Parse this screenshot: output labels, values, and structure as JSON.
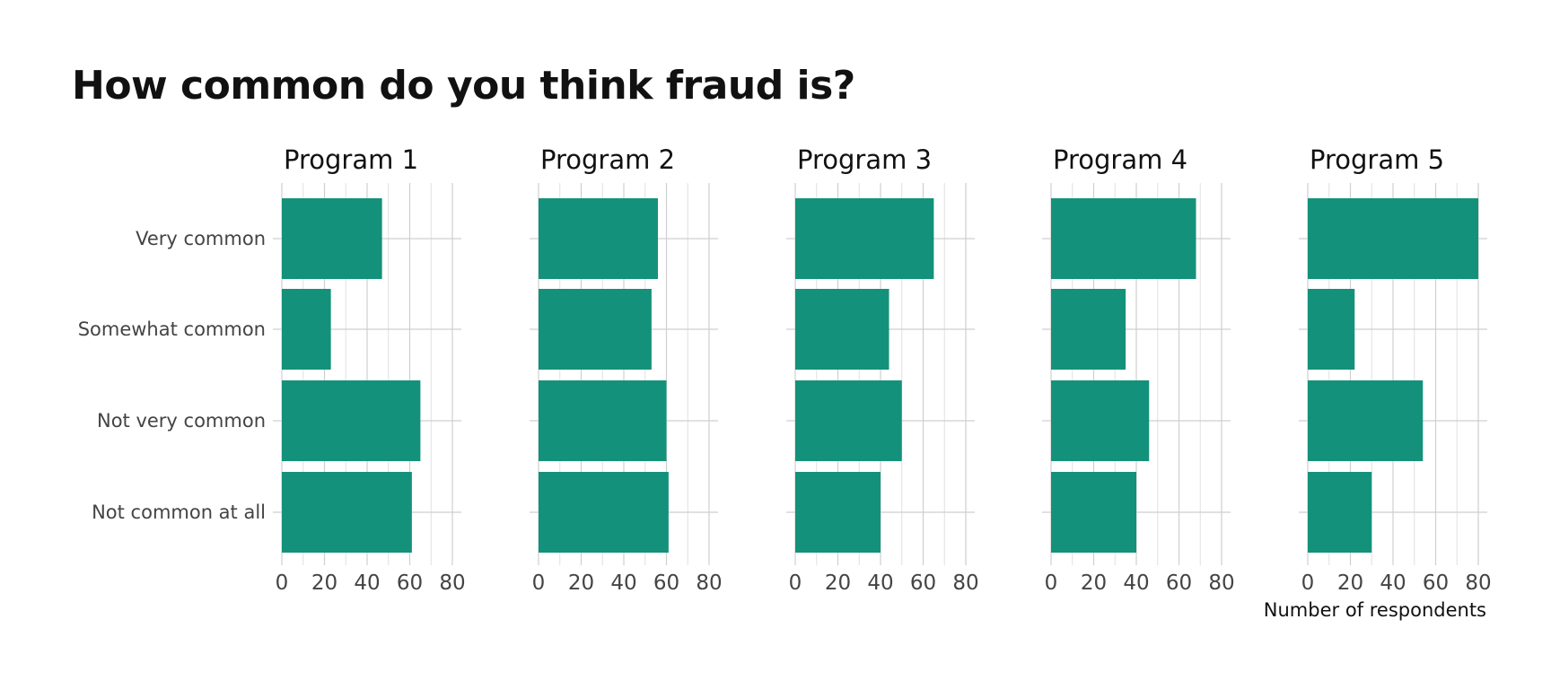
{
  "chart_data": {
    "type": "bar",
    "orientation": "horizontal",
    "title": "How common do you think fraud is?",
    "xlabel": "Number of respondents",
    "ylabel": "",
    "categories": [
      "Very common",
      "Somewhat common",
      "Not very common",
      "Not common at all"
    ],
    "xlim": [
      0,
      80
    ],
    "xticks": [
      0,
      20,
      40,
      60,
      80
    ],
    "grid": true,
    "bar_color": "#14917a",
    "panels": [
      {
        "name": "Program 1",
        "values": [
          47,
          23,
          65,
          61
        ]
      },
      {
        "name": "Program 2",
        "values": [
          56,
          53,
          60,
          61
        ]
      },
      {
        "name": "Program 3",
        "values": [
          65,
          44,
          50,
          40
        ]
      },
      {
        "name": "Program 4",
        "values": [
          68,
          35,
          46,
          40
        ]
      },
      {
        "name": "Program 5",
        "values": [
          80,
          22,
          54,
          30
        ]
      }
    ]
  }
}
